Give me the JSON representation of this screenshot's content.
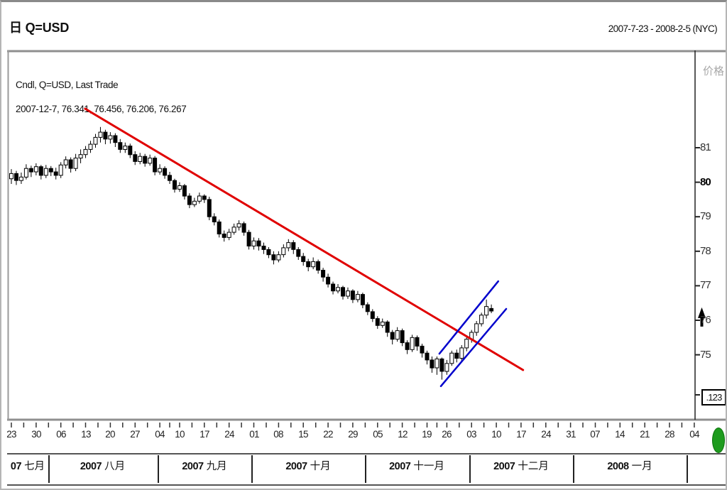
{
  "window": {
    "title": "日 Q=USD",
    "date_range": "2007-7-23 - 2008-2-5 (NYC)"
  },
  "legend": {
    "line1": "Cndl, Q=USD, Last Trade",
    "line2": "2007-12-7, 76.341, 76.456, 76.206, 76.267"
  },
  "y_axis": {
    "title": "价格",
    "ticks": [
      81,
      80,
      79,
      78,
      77,
      76,
      75
    ],
    "bold_tick": 80,
    "low_box": ".123"
  },
  "x_axis": {
    "week_labels": [
      "23",
      "30",
      "06",
      "13",
      "20",
      "27",
      "04",
      "10",
      "17",
      "24",
      "01",
      "08",
      "15",
      "22",
      "29",
      "05",
      "12",
      "19",
      "26",
      "03",
      "10",
      "17",
      "24",
      "31",
      "07",
      "14",
      "21",
      "28",
      "04"
    ],
    "week_positions": [
      0,
      5,
      10,
      15,
      20,
      25,
      30,
      34,
      39,
      44,
      49,
      54,
      59,
      64,
      69,
      74,
      79,
      84,
      88,
      93,
      98,
      103,
      108,
      113,
      118,
      123,
      128,
      133,
      138
    ]
  },
  "months": {
    "labels": [
      {
        "year": "07",
        "month": "七月"
      },
      {
        "year": "2007",
        "month": "八月"
      },
      {
        "year": "2007",
        "month": "九月"
      },
      {
        "year": "2007",
        "month": "十月"
      },
      {
        "year": "2007",
        "month": "十一月"
      },
      {
        "year": "2007",
        "month": "十二月"
      },
      {
        "year": "2008",
        "month": "一月"
      }
    ],
    "boundaries_idx": [
      7.5,
      29.5,
      48.5,
      71.5,
      92.5,
      113.5,
      136.5
    ]
  },
  "markers": {
    "last_price_marker": 76.27,
    "green_dot_color": "#1e9b1e"
  },
  "colors": {
    "trend_red": "#e00000",
    "channel_blue": "#0000cc",
    "candle": "#000000",
    "frame_gray": "#8f8f8f",
    "tick_text": "#222222",
    "axis_title_gray": "#a8a8a8"
  },
  "chart_data": {
    "type": "candlestick",
    "title": "Cndl, Q=USD, Last Trade",
    "symbol": "Q=USD",
    "interval": "daily",
    "visible_range": "2007-7-23 - 2008-2-5 (NYC)",
    "ylabel": "价格",
    "y_ticks": [
      75,
      76,
      77,
      78,
      79,
      80,
      81
    ],
    "grid": false,
    "last_trade": {
      "date": "2007-12-7",
      "open": 76.341,
      "high": 76.456,
      "low": 76.206,
      "close": 76.267
    },
    "candles_format": [
      "date",
      "open",
      "high",
      "low",
      "close"
    ],
    "candles": [
      [
        "2007-07-23",
        80.1,
        80.38,
        79.95,
        80.25
      ],
      [
        "2007-07-24",
        80.25,
        80.33,
        79.92,
        80.05
      ],
      [
        "2007-07-25",
        80.05,
        80.28,
        79.95,
        80.15
      ],
      [
        "2007-07-26",
        80.15,
        80.52,
        80.08,
        80.4
      ],
      [
        "2007-07-27",
        80.4,
        80.48,
        80.15,
        80.3
      ],
      [
        "2007-07-30",
        80.3,
        80.55,
        80.2,
        80.45
      ],
      [
        "2007-07-31",
        80.45,
        80.5,
        80.08,
        80.2
      ],
      [
        "2007-08-01",
        80.2,
        80.5,
        80.12,
        80.4
      ],
      [
        "2007-08-02",
        80.4,
        80.47,
        80.18,
        80.3
      ],
      [
        "2007-08-03",
        80.3,
        80.42,
        80.08,
        80.2
      ],
      [
        "2007-08-06",
        80.2,
        80.58,
        80.12,
        80.5
      ],
      [
        "2007-08-07",
        80.5,
        80.75,
        80.4,
        80.65
      ],
      [
        "2007-08-08",
        80.65,
        80.72,
        80.28,
        80.4
      ],
      [
        "2007-08-09",
        80.4,
        80.82,
        80.32,
        80.7
      ],
      [
        "2007-08-10",
        80.7,
        80.95,
        80.55,
        80.8
      ],
      [
        "2007-08-13",
        80.8,
        81.05,
        80.7,
        80.95
      ],
      [
        "2007-08-14",
        80.95,
        81.2,
        80.85,
        81.1
      ],
      [
        "2007-08-15",
        81.1,
        81.4,
        81.0,
        81.3
      ],
      [
        "2007-08-16",
        81.3,
        81.6,
        81.15,
        81.45
      ],
      [
        "2007-08-17",
        81.45,
        81.52,
        81.1,
        81.25
      ],
      [
        "2007-08-20",
        81.25,
        81.45,
        81.12,
        81.35
      ],
      [
        "2007-08-21",
        81.35,
        81.42,
        81.02,
        81.15
      ],
      [
        "2007-08-22",
        81.15,
        81.25,
        80.85,
        80.95
      ],
      [
        "2007-08-23",
        80.95,
        81.15,
        80.85,
        81.05
      ],
      [
        "2007-08-24",
        81.05,
        81.12,
        80.7,
        80.8
      ],
      [
        "2007-08-27",
        80.8,
        80.9,
        80.5,
        80.6
      ],
      [
        "2007-08-28",
        80.6,
        80.85,
        80.52,
        80.75
      ],
      [
        "2007-08-29",
        80.75,
        80.82,
        80.45,
        80.55
      ],
      [
        "2007-08-30",
        80.55,
        80.8,
        80.48,
        80.7
      ],
      [
        "2007-08-31",
        80.7,
        80.76,
        80.2,
        80.3
      ],
      [
        "2007-09-04",
        80.3,
        80.52,
        80.22,
        80.4
      ],
      [
        "2007-09-05",
        80.4,
        80.46,
        80.1,
        80.2
      ],
      [
        "2007-09-06",
        80.2,
        80.3,
        79.95,
        80.05
      ],
      [
        "2007-09-07",
        80.05,
        80.1,
        79.7,
        79.8
      ],
      [
        "2007-09-10",
        79.8,
        80.0,
        79.72,
        79.9
      ],
      [
        "2007-09-11",
        79.9,
        79.95,
        79.5,
        79.6
      ],
      [
        "2007-09-12",
        79.6,
        79.68,
        79.25,
        79.35
      ],
      [
        "2007-09-13",
        79.35,
        79.55,
        79.28,
        79.45
      ],
      [
        "2007-09-14",
        79.45,
        79.7,
        79.38,
        79.6
      ],
      [
        "2007-09-17",
        79.6,
        79.65,
        79.4,
        79.5
      ],
      [
        "2007-09-18",
        79.5,
        79.58,
        78.9,
        79.0
      ],
      [
        "2007-09-19",
        79.0,
        79.1,
        78.75,
        78.85
      ],
      [
        "2007-09-20",
        78.85,
        78.92,
        78.4,
        78.5
      ],
      [
        "2007-09-21",
        78.5,
        78.6,
        78.28,
        78.4
      ],
      [
        "2007-09-24",
        78.4,
        78.65,
        78.32,
        78.55
      ],
      [
        "2007-09-25",
        78.55,
        78.8,
        78.48,
        78.7
      ],
      [
        "2007-09-26",
        78.7,
        78.9,
        78.6,
        78.8
      ],
      [
        "2007-09-27",
        78.8,
        78.86,
        78.45,
        78.55
      ],
      [
        "2007-09-28",
        78.55,
        78.62,
        78.05,
        78.15
      ],
      [
        "2007-10-01",
        78.15,
        78.4,
        78.05,
        78.3
      ],
      [
        "2007-10-02",
        78.3,
        78.38,
        78.02,
        78.15
      ],
      [
        "2007-10-03",
        78.15,
        78.25,
        77.92,
        78.05
      ],
      [
        "2007-10-04",
        78.05,
        78.12,
        77.8,
        77.9
      ],
      [
        "2007-10-05",
        77.9,
        78.0,
        77.62,
        77.75
      ],
      [
        "2007-10-08",
        77.75,
        78.0,
        77.68,
        77.9
      ],
      [
        "2007-10-09",
        77.9,
        78.2,
        77.82,
        78.1
      ],
      [
        "2007-10-10",
        78.1,
        78.35,
        78.0,
        78.25
      ],
      [
        "2007-10-11",
        78.25,
        78.32,
        77.92,
        78.05
      ],
      [
        "2007-10-12",
        78.05,
        78.12,
        77.75,
        77.85
      ],
      [
        "2007-10-15",
        77.85,
        77.95,
        77.58,
        77.7
      ],
      [
        "2007-10-16",
        77.7,
        77.78,
        77.42,
        77.55
      ],
      [
        "2007-10-17",
        77.55,
        77.82,
        77.48,
        77.7
      ],
      [
        "2007-10-18",
        77.7,
        77.76,
        77.35,
        77.45
      ],
      [
        "2007-10-19",
        77.45,
        77.52,
        77.12,
        77.25
      ],
      [
        "2007-10-22",
        77.25,
        77.35,
        76.95,
        77.05
      ],
      [
        "2007-10-23",
        77.05,
        77.12,
        76.75,
        76.85
      ],
      [
        "2007-10-24",
        76.85,
        77.05,
        76.78,
        76.95
      ],
      [
        "2007-10-25",
        76.95,
        77.0,
        76.6,
        76.7
      ],
      [
        "2007-10-26",
        76.7,
        76.95,
        76.62,
        76.85
      ],
      [
        "2007-10-29",
        76.85,
        76.9,
        76.5,
        76.6
      ],
      [
        "2007-10-30",
        76.6,
        76.85,
        76.52,
        76.75
      ],
      [
        "2007-10-31",
        76.75,
        76.8,
        76.35,
        76.45
      ],
      [
        "2007-11-01",
        76.45,
        76.52,
        76.15,
        76.25
      ],
      [
        "2007-11-02",
        76.25,
        76.32,
        75.95,
        76.05
      ],
      [
        "2007-11-05",
        76.05,
        76.12,
        75.75,
        75.85
      ],
      [
        "2007-11-06",
        75.85,
        76.05,
        75.78,
        75.95
      ],
      [
        "2007-11-07",
        75.95,
        76.0,
        75.52,
        75.65
      ],
      [
        "2007-11-08",
        75.65,
        75.72,
        75.3,
        75.45
      ],
      [
        "2007-11-09",
        75.45,
        75.8,
        75.38,
        75.7
      ],
      [
        "2007-11-12",
        75.7,
        75.76,
        75.25,
        75.35
      ],
      [
        "2007-11-13",
        75.35,
        75.42,
        75.02,
        75.15
      ],
      [
        "2007-11-14",
        75.15,
        75.58,
        75.08,
        75.5
      ],
      [
        "2007-11-15",
        75.5,
        75.56,
        75.12,
        75.25
      ],
      [
        "2007-11-16",
        75.25,
        75.32,
        74.92,
        75.05
      ],
      [
        "2007-11-19",
        75.05,
        75.12,
        74.72,
        74.85
      ],
      [
        "2007-11-20",
        74.85,
        74.95,
        74.48,
        74.62
      ],
      [
        "2007-11-21",
        74.62,
        74.95,
        74.42,
        74.88
      ],
      [
        "2007-11-23",
        74.88,
        74.92,
        74.28,
        74.52
      ],
      [
        "2007-11-26",
        74.52,
        74.85,
        74.42,
        74.75
      ],
      [
        "2007-11-27",
        74.75,
        75.12,
        74.68,
        75.05
      ],
      [
        "2007-11-28",
        75.05,
        75.15,
        74.78,
        74.9
      ],
      [
        "2007-11-29",
        74.9,
        75.28,
        74.82,
        75.2
      ],
      [
        "2007-11-30",
        75.2,
        75.55,
        75.1,
        75.45
      ],
      [
        "2007-12-03",
        75.45,
        75.72,
        75.35,
        75.65
      ],
      [
        "2007-12-04",
        75.65,
        75.98,
        75.55,
        75.9
      ],
      [
        "2007-12-05",
        75.9,
        76.22,
        75.82,
        76.15
      ],
      [
        "2007-12-06",
        76.15,
        76.6,
        76.05,
        76.4
      ],
      [
        "2007-12-07",
        76.341,
        76.456,
        76.206,
        76.267
      ]
    ],
    "trendlines": [
      {
        "name": "downtrend-resistance-line",
        "color": "#e00000",
        "width": 3,
        "p1": {
          "idx": 14.9,
          "price": 82.13
        },
        "p2": {
          "idx": 103.4,
          "price": 74.56
        }
      },
      {
        "name": "channel-upper-line",
        "color": "#0000cc",
        "width": 2.5,
        "p1": {
          "idx": 86.5,
          "price": 75.03
        },
        "p2": {
          "idx": 98.4,
          "price": 77.13
        }
      },
      {
        "name": "channel-lower-line",
        "color": "#0000cc",
        "width": 2.5,
        "p1": {
          "idx": 86.8,
          "price": 74.09
        },
        "p2": {
          "idx": 100.0,
          "price": 76.33
        }
      }
    ]
  }
}
